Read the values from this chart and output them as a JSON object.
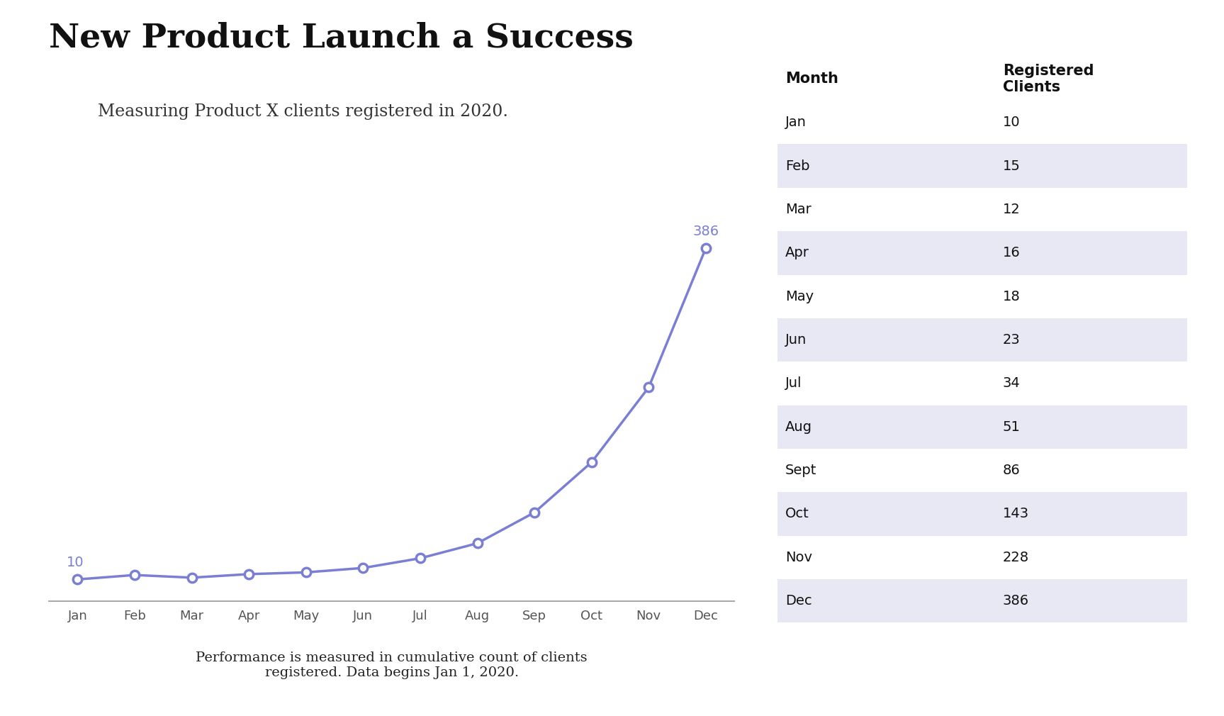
{
  "title": "New Product Launch a Success",
  "subtitle": "Measuring Product X clients registered in 2020.",
  "footer": "Performance is measured in cumulative count of clients\nregistered. Data begins Jan 1, 2020.",
  "months": [
    "Jan",
    "Feb",
    "Mar",
    "Apr",
    "May",
    "Jun",
    "Jul",
    "Aug",
    "Sep",
    "Oct",
    "Nov",
    "Dec"
  ],
  "values": [
    10,
    15,
    12,
    16,
    18,
    23,
    34,
    51,
    86,
    143,
    228,
    386
  ],
  "line_color": "#7b7fd4",
  "marker_face": "#ffffff",
  "marker_edge": "#7b7fd4",
  "label_color": "#7b7fd4",
  "table_months": [
    "Jan",
    "Feb",
    "Mar",
    "Apr",
    "May",
    "Jun",
    "Jul",
    "Aug",
    "Sept",
    "Oct",
    "Nov",
    "Dec"
  ],
  "table_values": [
    10,
    15,
    12,
    16,
    18,
    23,
    34,
    51,
    86,
    143,
    228,
    386
  ],
  "table_row_shaded": "#e8e8f4",
  "table_row_white": "#ffffff",
  "col_header_month": "Month",
  "col_header_clients": "Registered\nClients",
  "background_color": "#ffffff",
  "title_fontsize": 34,
  "subtitle_fontsize": 17,
  "footer_fontsize": 14,
  "tick_fontsize": 13,
  "annotation_fontsize": 14,
  "table_fontsize": 14,
  "table_header_fontsize": 15
}
